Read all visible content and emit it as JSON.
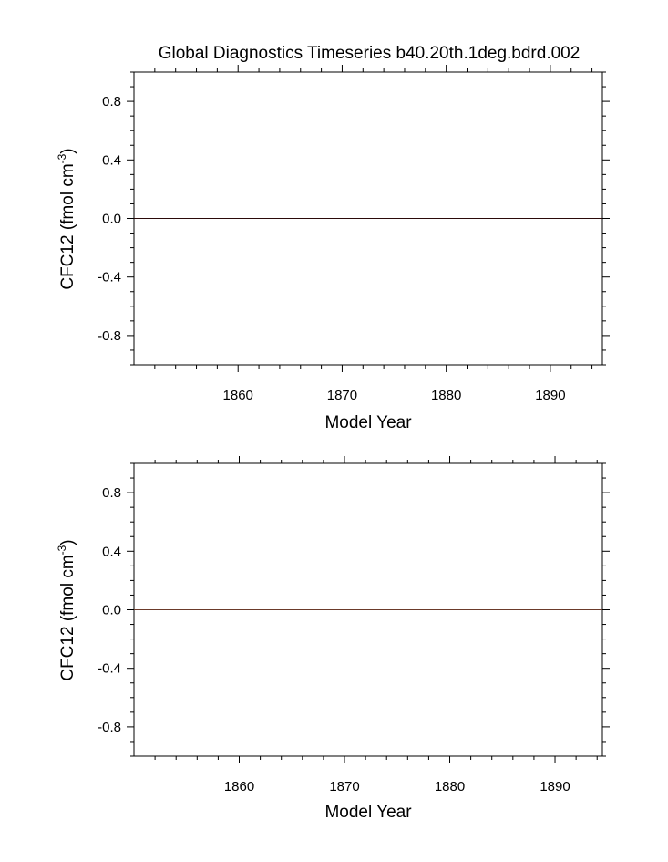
{
  "chart_data": [
    {
      "type": "line",
      "title": "Global Diagnostics Timeseries b40.20th.1deg.bdrd.002",
      "xlabel": "Model Year",
      "ylabel_main": "CFC12 (fmol cm",
      "ylabel_sup": "-3",
      "ylabel_close": ")",
      "xlim": [
        1850,
        1895
      ],
      "ylim": [
        -1.0,
        1.0
      ],
      "xticks": [
        1860,
        1870,
        1880,
        1890
      ],
      "xtick_labels": [
        "1860",
        "1870",
        "1880",
        "1890"
      ],
      "yticks": [
        -0.8,
        -0.4,
        0.0,
        0.4,
        0.8
      ],
      "ytick_labels": [
        "-0.8",
        "-0.4",
        "0.0",
        "0.4",
        "0.8"
      ],
      "grid": false,
      "series": [
        {
          "x": [
            1850,
            1895
          ],
          "y": [
            0,
            0
          ],
          "color": "#2b0a0a"
        }
      ]
    },
    {
      "type": "line",
      "title": "",
      "xlabel": "Model Year",
      "ylabel_main": "CFC12 (fmol cm",
      "ylabel_sup": "-3",
      "ylabel_close": ")",
      "xlim": [
        1850,
        1894.5
      ],
      "ylim": [
        -1.0,
        1.0
      ],
      "xticks": [
        1860,
        1870,
        1880,
        1890
      ],
      "xtick_labels": [
        "1860",
        "1870",
        "1880",
        "1890"
      ],
      "yticks": [
        -0.8,
        -0.4,
        0.0,
        0.4,
        0.8
      ],
      "ytick_labels": [
        "-0.8",
        "-0.4",
        "0.0",
        "0.4",
        "0.8"
      ],
      "grid": false,
      "series": [
        {
          "x": [
            1850,
            1894.5
          ],
          "y": [
            0,
            0
          ],
          "color": "#6b3a2a"
        }
      ]
    }
  ]
}
